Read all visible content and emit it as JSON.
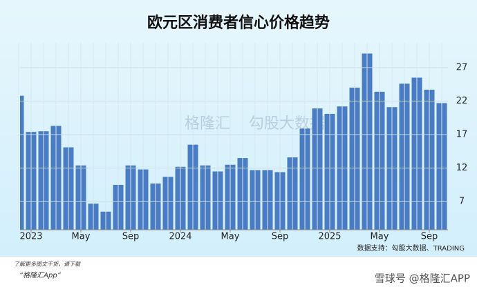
{
  "chart_data": {
    "type": "bar",
    "title": "欧元区消费者信心价格趋势",
    "categories": [
      null,
      "2023",
      null,
      null,
      null,
      "May",
      null,
      null,
      null,
      "Sep",
      null,
      null,
      null,
      "2024",
      null,
      null,
      null,
      "May",
      null,
      null,
      null,
      "Sep",
      null,
      null,
      null,
      "2025",
      null,
      null,
      null,
      "May",
      null,
      null,
      null,
      "Sep",
      null
    ],
    "values": [
      22.8,
      17.4,
      17.5,
      18.3,
      15.1,
      12.4,
      6.7,
      5.5,
      9.5,
      12.4,
      11.8,
      9.7,
      10.7,
      12.2,
      15.5,
      12.4,
      11.5,
      12.5,
      13.5,
      11.7,
      11.7,
      11.4,
      13.6,
      17.9,
      20.9,
      20.1,
      21.2,
      24.0,
      29.1,
      23.4,
      21.1,
      24.6,
      25.5,
      23.7,
      21.7
    ],
    "color": "#4a7cc4",
    "ylim": [
      2.8,
      30.7
    ],
    "yticks": [
      7,
      12,
      17,
      22,
      27
    ],
    "grid": true,
    "source": "数据支持：勾股大数据、TRADING",
    "footer": {
      "line1": "了解更多图文干货，请下载",
      "line2": "“格隆汇App”",
      "handle": "雪球号 @格隆汇APP"
    },
    "watermark": [
      "格隆汇",
      "勾股大数据"
    ]
  }
}
